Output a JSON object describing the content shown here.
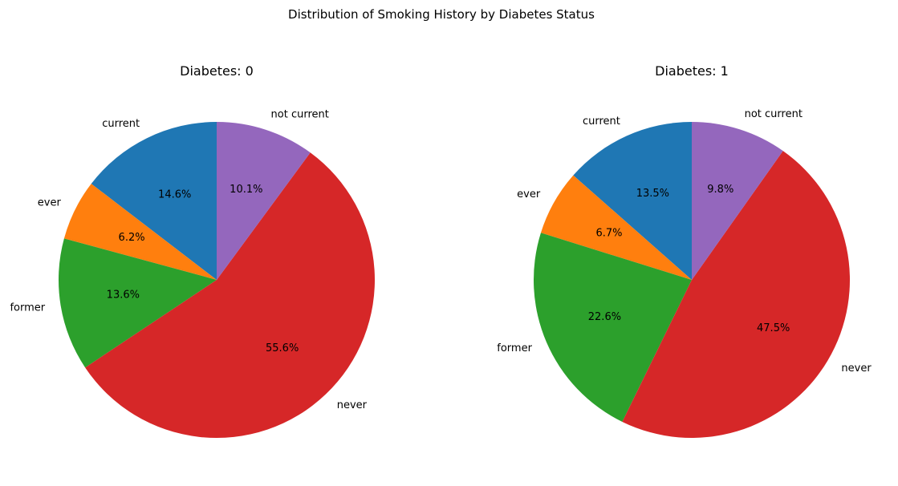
{
  "figure": {
    "title": "Distribution of Smoking History by Diabetes Status"
  },
  "chart_data": [
    {
      "type": "pie",
      "title": "Diabetes: 0",
      "categories": [
        "current",
        "ever",
        "former",
        "never",
        "not current"
      ],
      "values": [
        14.6,
        6.2,
        13.6,
        55.6,
        10.1
      ],
      "value_labels": [
        "14.6%",
        "6.2%",
        "13.6%",
        "55.6%",
        "10.1%"
      ],
      "colors": [
        "#1f77b4",
        "#ff7f0e",
        "#2ca02c",
        "#d62728",
        "#9467bd"
      ],
      "start_angle_deg": 90,
      "direction": "counterclockwise"
    },
    {
      "type": "pie",
      "title": "Diabetes: 1",
      "categories": [
        "current",
        "ever",
        "former",
        "never",
        "not current"
      ],
      "values": [
        13.5,
        6.7,
        22.6,
        47.5,
        9.8
      ],
      "value_labels": [
        "13.5%",
        "6.7%",
        "22.6%",
        "47.5%",
        "9.8%"
      ],
      "colors": [
        "#1f77b4",
        "#ff7f0e",
        "#2ca02c",
        "#d62728",
        "#9467bd"
      ],
      "start_angle_deg": 90,
      "direction": "counterclockwise"
    }
  ]
}
